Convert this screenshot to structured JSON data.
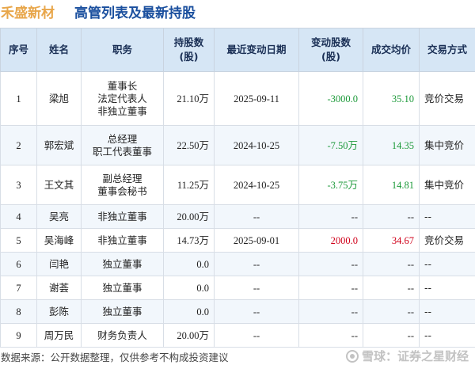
{
  "header": {
    "company": "禾盛新材",
    "subtitle": "高管列表及最新持股"
  },
  "table": {
    "columns": [
      "序号",
      "姓名",
      "职务",
      "持股数\n(股)",
      "最近变动日期",
      "变动股数\n(股)",
      "成交均价",
      "交易方式"
    ],
    "rows": [
      {
        "no": "1",
        "name": "梁旭",
        "position": "董事长\n法定代表人\n非独立董事",
        "shares": "21.10万",
        "date": "2025-09-11",
        "change": "-3000.0",
        "change_sign": "neg",
        "price": "35.10",
        "price_sign": "neg",
        "method": "竞价交易"
      },
      {
        "no": "2",
        "name": "郭宏斌",
        "position": "总经理\n职工代表董事",
        "shares": "22.50万",
        "date": "2024-10-25",
        "change": "-7.50万",
        "change_sign": "neg",
        "price": "14.35",
        "price_sign": "neg",
        "method": "集中竞价"
      },
      {
        "no": "3",
        "name": "王文其",
        "position": "副总经理\n董事会秘书",
        "shares": "11.25万",
        "date": "2024-10-25",
        "change": "-3.75万",
        "change_sign": "neg",
        "price": "14.81",
        "price_sign": "neg",
        "method": "集中竞价"
      },
      {
        "no": "4",
        "name": "吴亮",
        "position": "非独立董事",
        "shares": "20.00万",
        "date": "--",
        "change": "--",
        "change_sign": "",
        "price": "--",
        "price_sign": "",
        "method": "--"
      },
      {
        "no": "5",
        "name": "吴海峰",
        "position": "非独立董事",
        "shares": "14.73万",
        "date": "2025-09-01",
        "change": "2000.0",
        "change_sign": "pos",
        "price": "34.67",
        "price_sign": "pos",
        "method": "竞价交易"
      },
      {
        "no": "6",
        "name": "闫艳",
        "position": "独立董事",
        "shares": "0.0",
        "date": "--",
        "change": "--",
        "change_sign": "",
        "price": "--",
        "price_sign": "",
        "method": "--"
      },
      {
        "no": "7",
        "name": "谢荟",
        "position": "独立董事",
        "shares": "0.0",
        "date": "--",
        "change": "--",
        "change_sign": "",
        "price": "--",
        "price_sign": "",
        "method": "--"
      },
      {
        "no": "8",
        "name": "彭陈",
        "position": "独立董事",
        "shares": "0.0",
        "date": "--",
        "change": "--",
        "change_sign": "",
        "price": "--",
        "price_sign": "",
        "method": "--"
      },
      {
        "no": "9",
        "name": "周万民",
        "position": "财务负责人",
        "shares": "20.00万",
        "date": "--",
        "change": "--",
        "change_sign": "",
        "price": "--",
        "price_sign": "",
        "method": "--"
      }
    ]
  },
  "footer": {
    "source": "数据来源：公开数据整理，仅供参考不构成投资建议",
    "brand": "雪球：证券之星财经"
  },
  "colors": {
    "company": "#e8a64a",
    "subtitle": "#1a4f9e",
    "header_bg": "#d6e6f5",
    "positive": "#d0021b",
    "negative": "#1d9a3a"
  }
}
